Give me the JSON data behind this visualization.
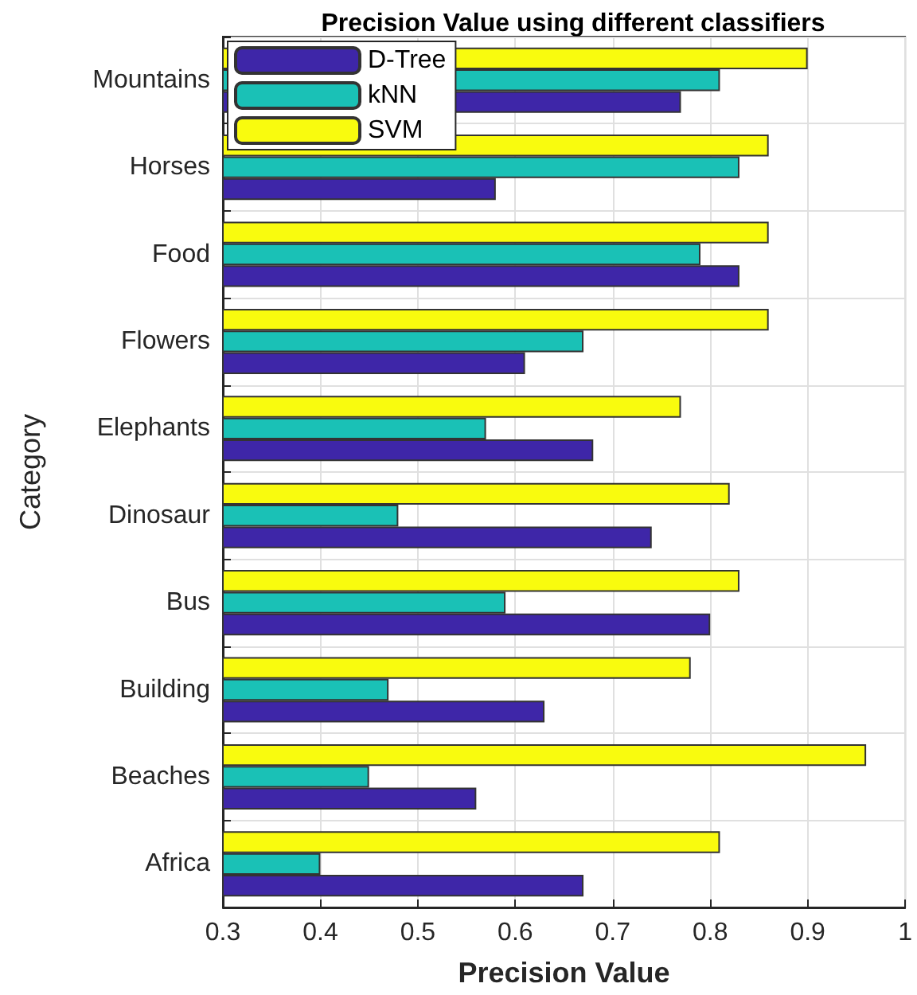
{
  "chart_data": {
    "type": "bar",
    "orientation": "horizontal",
    "title": "Precision Value using different classifiers",
    "xlabel": "Precision Value",
    "ylabel": "Category",
    "categories": [
      "Mountains",
      "Horses",
      "Food",
      "Flowers",
      "Elephants",
      "Dinosaur",
      "Bus",
      "Building",
      "Beaches",
      "Africa"
    ],
    "series": [
      {
        "name": "D-Tree",
        "color": "#3e26a8",
        "values": [
          0.77,
          0.58,
          0.83,
          0.61,
          0.68,
          0.74,
          0.8,
          0.63,
          0.56,
          0.67
        ]
      },
      {
        "name": "kNN",
        "color": "#1ac1b6",
        "values": [
          0.81,
          0.83,
          0.79,
          0.67,
          0.57,
          0.48,
          0.59,
          0.47,
          0.45,
          0.4
        ]
      },
      {
        "name": "SVM",
        "color": "#f9fb0e",
        "values": [
          0.9,
          0.86,
          0.86,
          0.86,
          0.77,
          0.82,
          0.83,
          0.78,
          0.96,
          0.81
        ]
      }
    ],
    "xlim": [
      0.3,
      1
    ],
    "xticks": [
      0.3,
      0.4,
      0.5,
      0.6,
      0.7,
      0.8,
      0.9,
      1
    ],
    "grid": true,
    "legend": "top left"
  }
}
